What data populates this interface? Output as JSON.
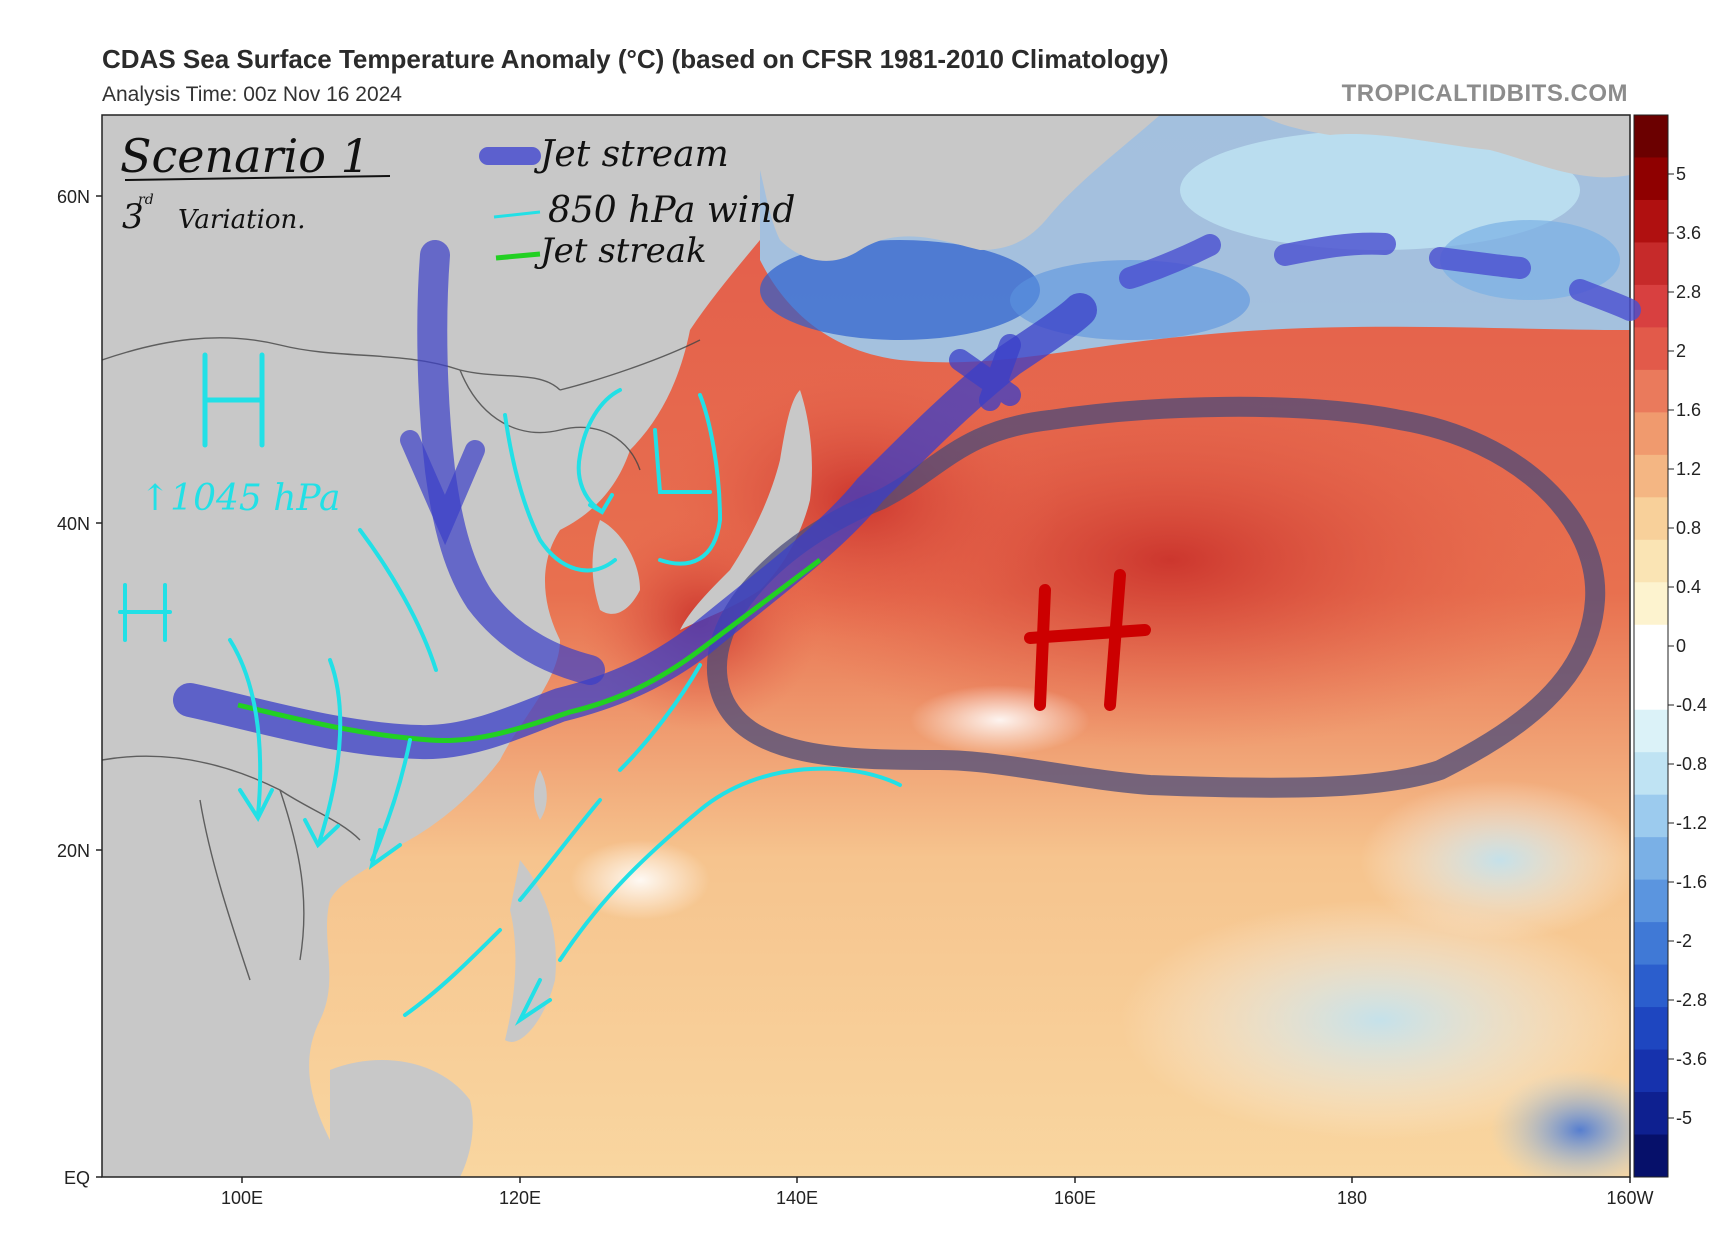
{
  "header": {
    "title": "CDAS Sea Surface Temperature Anomaly (°C) (based on CFSR 1981-2010 Climatology)",
    "subtitle": "Analysis Time: 00z Nov 16 2024",
    "brand": "TROPICALTIDBITS.COM"
  },
  "axes": {
    "lat_labels": [
      "60N",
      "40N",
      "20N",
      "EQ"
    ],
    "lon_labels": [
      "100E",
      "120E",
      "140E",
      "160E",
      "180",
      "160W"
    ]
  },
  "colorbar": {
    "labels": [
      "5",
      "3.6",
      "2.8",
      "2",
      "1.6",
      "1.2",
      "0.8",
      "0.4",
      "0",
      "-0.4",
      "-0.8",
      "-1.2",
      "-1.6",
      "-2",
      "-2.8",
      "-3.6",
      "-5"
    ],
    "colors": [
      "#6b0000",
      "#8f0000",
      "#b01010",
      "#c62a2a",
      "#d84040",
      "#e25a4a",
      "#ea7a5c",
      "#f09a6e",
      "#f4b683",
      "#f8d09a",
      "#fae4b4",
      "#fdf3cf",
      "#ffffff",
      "#ffffff",
      "#dbf2f8",
      "#bfe3f3",
      "#9ccbee",
      "#7ab0e6",
      "#5b95df",
      "#4079d6",
      "#2b5ecd",
      "#1e46c0",
      "#1632ad",
      "#0e2090",
      "#06106a"
    ]
  },
  "annotations": {
    "scenario_title": "Scenario 1",
    "scenario_sub_num": "3",
    "scenario_sub_sup": "rd",
    "scenario_sub": "Variation.",
    "legend_jet_stream": "Jet stream",
    "legend_850": "850 hPa wind",
    "legend_jet_streak": "Jet streak",
    "high_mongolia": "H",
    "pressure_note": "↑1045 hPa",
    "high_west": "H",
    "low_label": "L",
    "high_pacific": "H"
  },
  "style": {
    "land_color": "#c8c8c8",
    "jet_stream_color": "#4a4fd0",
    "wind_color": "#22e0e6",
    "jet_streak_color": "#22d022",
    "pacific_high_outline": "#4b4b7a",
    "pacific_high_label_color": "#cc0000"
  }
}
